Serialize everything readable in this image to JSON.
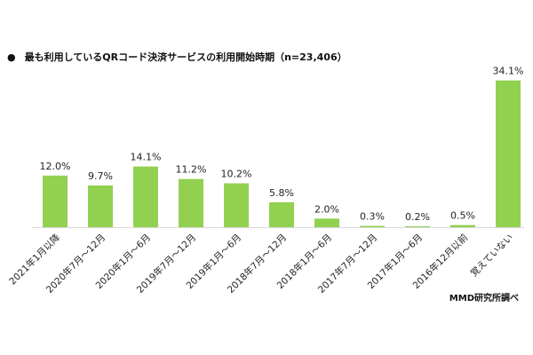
{
  "chart_data": {
    "type": "bar",
    "title": "最も利用しているQRコード決済サービスの利用開始時期（n=23,406）",
    "categories": [
      "2021年1月以降",
      "2020年7月～12月",
      "2020年1月～6月",
      "2019年7月～12月",
      "2019年1月～6月",
      "2018年7月～12月",
      "2018年1月～6月",
      "2017年7月～12月",
      "2017年1月～6月",
      "2016年12月以前",
      "覚えていない"
    ],
    "values": [
      12.0,
      9.7,
      14.1,
      11.2,
      10.2,
      5.8,
      2.0,
      0.3,
      0.2,
      0.5,
      34.1
    ],
    "value_labels": [
      "12.0%",
      "9.7%",
      "14.1%",
      "11.2%",
      "10.2%",
      "5.8%",
      "2.0%",
      "0.3%",
      "0.2%",
      "0.5%",
      "34.1%"
    ],
    "xlabel": "",
    "ylabel": "",
    "ylim": [
      0,
      40
    ],
    "bar_color": "#92d050",
    "grid": false,
    "legend": "none"
  },
  "source_note": "MMD研究所調べ"
}
